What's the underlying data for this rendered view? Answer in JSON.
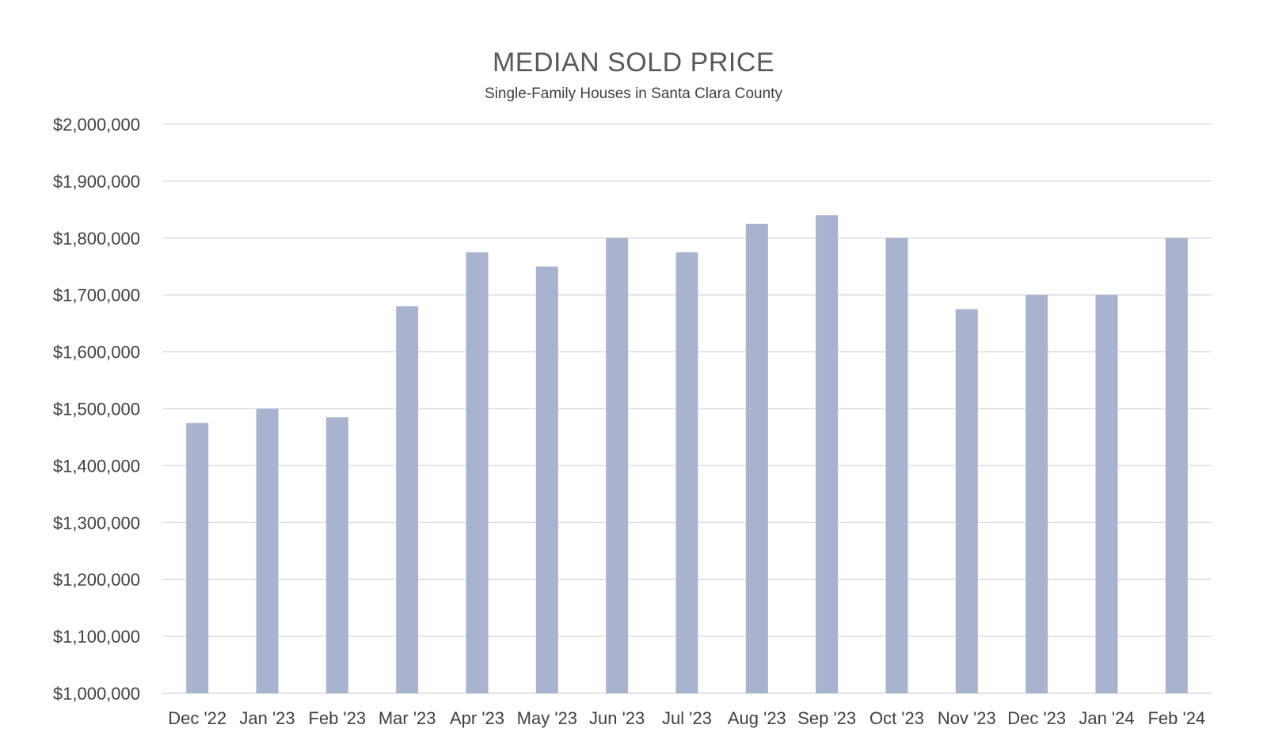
{
  "chart_data": {
    "type": "bar",
    "title": "MEDIAN SOLD PRICE",
    "subtitle": "Single-Family Houses in Santa Clara County",
    "xlabel": "",
    "ylabel": "",
    "categories": [
      "Dec '22",
      "Jan '23",
      "Feb '23",
      "Mar '23",
      "Apr '23",
      "May '23",
      "Jun '23",
      "Jul '23",
      "Aug '23",
      "Sep '23",
      "Oct '23",
      "Nov '23",
      "Dec '23",
      "Jan '24",
      "Feb '24"
    ],
    "values": [
      1475000,
      1500000,
      1485000,
      1680000,
      1775000,
      1750000,
      1800000,
      1775000,
      1825000,
      1840000,
      1800000,
      1675000,
      1700000,
      1700000,
      1800000
    ],
    "ylim": [
      1000000,
      2000000
    ],
    "yticks": [
      1000000,
      1100000,
      1200000,
      1300000,
      1400000,
      1500000,
      1600000,
      1700000,
      1800000,
      1900000,
      2000000
    ],
    "ytick_labels": [
      "$1,000,000",
      "$1,100,000",
      "$1,200,000",
      "$1,300,000",
      "$1,400,000",
      "$1,500,000",
      "$1,600,000",
      "$1,700,000",
      "$1,800,000",
      "$1,900,000",
      "$2,000,000"
    ],
    "grid": true,
    "legend": "none",
    "colors": {
      "bar": "#a7b3cf",
      "grid": "#d9d9d9",
      "text": "#404040",
      "title": "#595959"
    }
  }
}
